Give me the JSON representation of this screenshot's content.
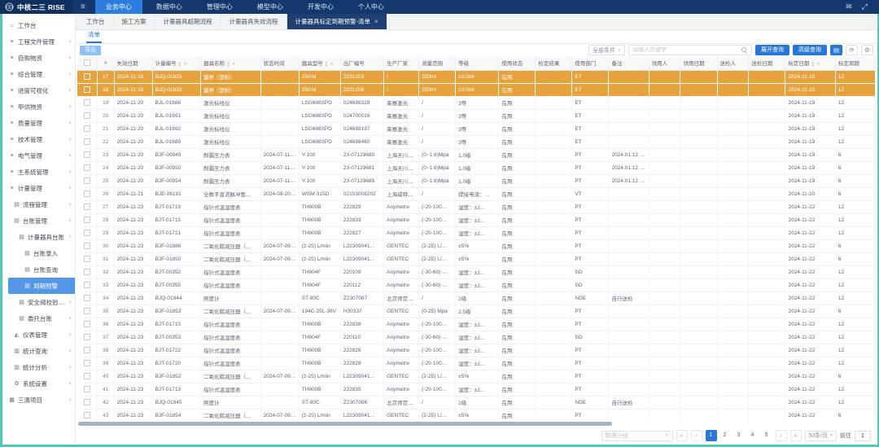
{
  "navbar": {
    "logo_text": "中核二三 RISE",
    "menu": [
      {
        "label": "业务中心",
        "active": true
      },
      {
        "label": "数据中心",
        "active": false
      },
      {
        "label": "管理中心",
        "active": false
      },
      {
        "label": "模型中心",
        "active": false
      },
      {
        "label": "开发中心",
        "active": false
      },
      {
        "label": "个人中心",
        "active": false
      }
    ]
  },
  "sidebar": {
    "items": [
      {
        "label": "工作台",
        "level": 0,
        "icon": "home",
        "chevron": "",
        "active": false
      },
      {
        "label": "工程文件管理",
        "level": 0,
        "icon": "list",
        "chevron": "down",
        "active": false
      },
      {
        "label": "自购物资",
        "level": 0,
        "icon": "list",
        "chevron": "down",
        "active": false
      },
      {
        "label": "综合管理",
        "level": 0,
        "icon": "list",
        "chevron": "down",
        "active": false
      },
      {
        "label": "进度可视化",
        "level": 0,
        "icon": "list",
        "chevron": "down",
        "active": false
      },
      {
        "label": "甲供物资",
        "level": 0,
        "icon": "list",
        "chevron": "down",
        "active": false
      },
      {
        "label": "质量管理",
        "level": 0,
        "icon": "list",
        "chevron": "down",
        "active": false
      },
      {
        "label": "技术管理",
        "level": 0,
        "icon": "list",
        "chevron": "down",
        "active": false
      },
      {
        "label": "电气管理",
        "level": 0,
        "icon": "list",
        "chevron": "down",
        "active": false
      },
      {
        "label": "主系统管理",
        "level": 0,
        "icon": "list",
        "chevron": "down",
        "active": false
      },
      {
        "label": "计量管理",
        "level": 0,
        "icon": "list",
        "chevron": "up",
        "active": false
      },
      {
        "label": "流程管理",
        "level": 1,
        "icon": "card",
        "chevron": "down",
        "active": false
      },
      {
        "label": "台账管理",
        "level": 1,
        "icon": "card",
        "chevron": "up",
        "active": false
      },
      {
        "label": "计量器具台账",
        "level": 2,
        "icon": "card",
        "chevron": "up",
        "active": false
      },
      {
        "label": "台账录入",
        "level": 3,
        "icon": "card",
        "chevron": "",
        "active": false
      },
      {
        "label": "台账查询",
        "level": 3,
        "icon": "card",
        "chevron": "",
        "active": false
      },
      {
        "label": "到期预警",
        "level": 3,
        "icon": "card",
        "chevron": "",
        "active": true
      },
      {
        "label": "安全阀校验台账",
        "level": 2,
        "icon": "card",
        "chevron": "down",
        "active": false
      },
      {
        "label": "委托台账",
        "level": 2,
        "icon": "card",
        "chevron": "down",
        "active": false
      },
      {
        "label": "仪表管理",
        "level": 1,
        "icon": "gauge",
        "chevron": "down",
        "active": false
      },
      {
        "label": "统计查询",
        "level": 1,
        "icon": "bar",
        "chevron": "down",
        "active": false
      },
      {
        "label": "统计分析",
        "level": 1,
        "icon": "bar",
        "chevron": "down",
        "active": false
      },
      {
        "label": "系统设置",
        "level": 1,
        "icon": "gear",
        "chevron": "down",
        "active": false
      },
      {
        "label": "三澳项目",
        "level": 0,
        "icon": "grid",
        "chevron": "down",
        "active": false
      }
    ]
  },
  "tabs": {
    "items": [
      {
        "label": "工作台",
        "active": false,
        "closable": false
      },
      {
        "label": "施工方案",
        "active": false,
        "closable": false
      },
      {
        "label": "计量器具超期流程",
        "active": false,
        "closable": false
      },
      {
        "label": "计量器具失效流程",
        "active": false,
        "closable": false
      },
      {
        "label": "计量器具标定到期预警-清单",
        "active": true,
        "closable": true
      }
    ]
  },
  "subtab": {
    "label": "清单"
  },
  "toolbar": {
    "export_label": "导出",
    "condition_select": "全部条件",
    "search_placeholder": "请输入关键字",
    "expand_query": "展开查询",
    "advanced_query": "高级查询"
  },
  "table": {
    "columns": [
      {
        "label": "",
        "type": "checkbox",
        "w": 24
      },
      {
        "label": "#",
        "type": "num",
        "w": 20
      },
      {
        "label": "失效日期",
        "w": 46
      },
      {
        "label": "计量编号",
        "w": 58,
        "sort": true
      },
      {
        "label": "器具名称",
        "w": 72,
        "sort": true
      },
      {
        "label": "状态时间",
        "w": 46
      },
      {
        "label": "器具型号",
        "w": 50,
        "sort": true
      },
      {
        "label": "出厂编号",
        "w": 52
      },
      {
        "label": "生产厂家",
        "w": 42
      },
      {
        "label": "测量范围",
        "w": 44
      },
      {
        "label": "等级",
        "w": 52
      },
      {
        "label": "使用状态",
        "w": 44
      },
      {
        "label": "检定结果",
        "w": 44
      },
      {
        "label": "使用部门",
        "w": 44
      },
      {
        "label": "备注",
        "w": 48
      },
      {
        "label": "领用人",
        "w": 38
      },
      {
        "label": "领用日期",
        "w": 44
      },
      {
        "label": "送检人",
        "w": 38
      },
      {
        "label": "送检日期",
        "w": 44
      },
      {
        "label": "标定日期",
        "w": 60,
        "sort": true
      },
      {
        "label": "标定周期",
        "w": 48
      }
    ],
    "selected": [
      17,
      18
    ],
    "rows": [
      [
        17,
        "2024-11-16",
        "BJQ-01625",
        "量杯（塑料）",
        "",
        "250ml",
        "2231203",
        "/",
        "250ml",
        "±3.0ml",
        "在用",
        "",
        "ET",
        "",
        "",
        "",
        "",
        "",
        "2024-11-15",
        "12"
      ],
      [
        18,
        "2024-11-16",
        "BJQ-01628",
        "量杯（塑料）",
        "",
        "250ml",
        "2231206",
        "/",
        "250ml",
        "±3.0ml",
        "在用",
        "",
        "ET",
        "",
        "",
        "",
        "",
        "",
        "2024-11-15",
        "12"
      ],
      [
        19,
        "2024-11-20",
        "BJL-01688",
        "激光标线仪",
        "",
        "LSG686SPD",
        "024698328",
        "莱赛激光",
        "/",
        "3等",
        "在用",
        "",
        "ET",
        "",
        "",
        "",
        "",
        "",
        "2024-11-19",
        "12"
      ],
      [
        20,
        "2024-11-20",
        "BJL-01691",
        "激光标线仪",
        "",
        "LSG686SPD",
        "024700016",
        "莱赛激光",
        "/",
        "3等",
        "在用",
        "",
        "ET",
        "",
        "",
        "",
        "",
        "",
        "2024-11-19",
        "12"
      ],
      [
        21,
        "2024-11-20",
        "BJL-01692",
        "激光标线仪",
        "",
        "LSG686SPD",
        "024698197",
        "莱赛激光",
        "/",
        "3等",
        "在用",
        "",
        "ET",
        "",
        "",
        "",
        "",
        "",
        "2024-11-19",
        "12"
      ],
      [
        22,
        "2024-11-20",
        "BJL-01689",
        "激光标线仪",
        "",
        "LSG686SPD",
        "024698460",
        "莱赛激光",
        "/",
        "3等",
        "在用",
        "",
        "ET",
        "",
        "",
        "",
        "",
        "",
        "2024-11-19",
        "12"
      ],
      [
        23,
        "2024-11-20",
        "BJF-00949",
        "耐震压力表",
        "2024-07-11…",
        "Y-100",
        "23-07129680",
        "上海天川仪…",
        "(0~1.6)Mpa",
        "1.0级",
        "在用",
        "",
        "PT",
        "2024.01.12 …",
        "",
        "",
        "",
        "",
        "2024-11-19",
        "6"
      ],
      [
        24,
        "2024-11-20",
        "BJF-00950",
        "耐震压力表",
        "2024-07-11…",
        "Y-100",
        "23-07129681",
        "上海天川仪…",
        "(0~1.6)Mpa",
        "1.0级",
        "在用",
        "",
        "PT",
        "2024.01.12 …",
        "",
        "",
        "",
        "",
        "2024-11-19",
        "6"
      ],
      [
        25,
        "2024-11-20",
        "BJF-00954",
        "耐震压力表",
        "2024-07-11…",
        "Y-100",
        "23-07129685",
        "上海天川仪…",
        "(0~1.6)Mpa",
        "1.0级",
        "在用",
        "",
        "PT",
        "2024.01.12 …",
        "",
        "",
        "",
        "",
        "2024-11-19",
        "6"
      ],
      [
        26,
        "2024-11-21",
        "BJE-06191",
        "全数字直流脉冲氩…",
        "2024-09-20…",
        "WSM-315D",
        "02103008202",
        "上海威特力…",
        "/",
        "焊接电流：…",
        "在用",
        "",
        "VT",
        "",
        "",
        "",
        "",
        "",
        "2024-11-20",
        "6"
      ],
      [
        27,
        "2024-11-23",
        "BJT-01719",
        "指针式温湿度表",
        "",
        "TH600B",
        "222829",
        "Anymetre",
        "(-20-100…",
        "湿度：±2…",
        "在用",
        "",
        "PT",
        "",
        "",
        "",
        "",
        "",
        "2024-11-22",
        "12"
      ],
      [
        28,
        "2024-11-23",
        "BJT-01715",
        "指针式温湿度表",
        "",
        "TH600B",
        "222833",
        "Anymetre",
        "(-20-100…",
        "湿度：±2…",
        "在用",
        "",
        "PT",
        "",
        "",
        "",
        "",
        "",
        "2024-11-22",
        "12"
      ],
      [
        29,
        "2024-11-23",
        "BJT-01721",
        "指针式温湿度表",
        "",
        "TH600B",
        "222827",
        "Anymetre",
        "(-20-100…",
        "湿度：±2…",
        "在用",
        "",
        "PT",
        "",
        "",
        "",
        "",
        "",
        "2024-11-22",
        "12"
      ],
      [
        30,
        "2024-11-23",
        "BJF-01886",
        "二氧化碳减压器（…",
        "2024-07-09…",
        "(2-25) L/min",
        "L22309041…",
        "GENTEC",
        "(2-25) L/…",
        "±5%",
        "在用",
        "",
        "PT",
        "",
        "",
        "",
        "",
        "",
        "2024-11-22",
        "6"
      ],
      [
        31,
        "2024-11-23",
        "BJF-01850",
        "二氧化碳减压器（…",
        "2024-07-09…",
        "(2-25) L/min",
        "L22309041…",
        "GENTEC",
        "(2-25) L/…",
        "±5%",
        "在用",
        "",
        "PT",
        "",
        "",
        "",
        "",
        "",
        "2024-11-22",
        "6"
      ],
      [
        32,
        "2024-11-23",
        "BJT-00352",
        "指针式温湿度表",
        "",
        "TH604F",
        "220109",
        "Anymetre",
        "(-30-60) …",
        "湿度：±2…",
        "在用",
        "",
        "SD",
        "",
        "",
        "",
        "",
        "",
        "2024-11-22",
        "12"
      ],
      [
        33,
        "2024-11-23",
        "BJT-00355",
        "指针式温湿度表",
        "",
        "TH604F",
        "220112",
        "Anymetre",
        "(-30-60) …",
        "湿度：±2…",
        "在用",
        "",
        "SD",
        "",
        "",
        "",
        "",
        "",
        "2024-11-22",
        "12"
      ],
      [
        34,
        "2024-11-23",
        "BJQ-01944",
        "照度计",
        "",
        "ST-80C",
        "Z2307087",
        "北京师范大…",
        "/",
        "2级",
        "在用",
        "",
        "NDE",
        "自行送检",
        "",
        "",
        "",
        "",
        "2024-11-22",
        "12"
      ],
      [
        35,
        "2024-11-23",
        "BJF-01853",
        "二氧化碳减压器（…",
        "2024-07-09…",
        "194C-25L-36V",
        "H30337",
        "GENTEC",
        "(0-25) Mpa",
        "2.5级",
        "在用",
        "",
        "PT",
        "",
        "",
        "",
        "",
        "",
        "2024-11-22",
        "6"
      ],
      [
        36,
        "2024-11-23",
        "BJT-01710",
        "指针式温湿度表",
        "",
        "TH600B",
        "222838",
        "Anymetre",
        "(-20-100…",
        "湿度：±2…",
        "在用",
        "",
        "PT",
        "",
        "",
        "",
        "",
        "",
        "2024-11-22",
        "12"
      ],
      [
        37,
        "2024-11-23",
        "BJT-00353",
        "指针式温湿度表",
        "",
        "TH604F",
        "220110",
        "Anymetre",
        "(-30-60) …",
        "湿度：±2…",
        "在用",
        "",
        "SD",
        "",
        "",
        "",
        "",
        "",
        "2024-11-22",
        "12"
      ],
      [
        38,
        "2024-11-23",
        "BJT-01722",
        "指针式温湿度表",
        "",
        "TH600B",
        "222826",
        "Anymetre",
        "(-20-100…",
        "湿度：±2…",
        "在用",
        "",
        "PT",
        "",
        "",
        "",
        "",
        "",
        "2024-11-22",
        "12"
      ],
      [
        39,
        "2024-11-23",
        "BJT-01720",
        "指针式温湿度表",
        "",
        "TH600B",
        "222828",
        "Anymetre",
        "(-20-100…",
        "湿度：±2…",
        "在用",
        "",
        "PT",
        "",
        "",
        "",
        "",
        "",
        "2024-11-22",
        "12"
      ],
      [
        40,
        "2024-11-23",
        "BJF-01852",
        "二氧化碳减压器（…",
        "2024-07-09…",
        "(2-25) L/min",
        "L22309041…",
        "GENTEC",
        "(2-25) L/…",
        "±5%",
        "在用",
        "",
        "PT",
        "",
        "",
        "",
        "",
        "",
        "2024-11-22",
        "6"
      ],
      [
        41,
        "2024-11-23",
        "BJT-01713",
        "指针式温湿度表",
        "",
        "TH600B",
        "222835",
        "Anymetre",
        "(-20-100…",
        "湿度：±2…",
        "在用",
        "",
        "PT",
        "",
        "",
        "",
        "",
        "",
        "2024-11-22",
        "12"
      ],
      [
        42,
        "2024-11-23",
        "BJQ-01945",
        "照度计",
        "",
        "ST-80C",
        "Z2307086",
        "北京师范大…",
        "/",
        "2级",
        "在用",
        "",
        "NDE",
        "自行送检",
        "",
        "",
        "",
        "",
        "2024-11-22",
        "12"
      ],
      [
        43,
        "2024-11-23",
        "BJF-01854",
        "二氧化碳减压器（…",
        "2024-07-09…",
        "(2-25) L/min",
        "L22309041…",
        "GENTEC",
        "(2-25) L/…",
        "±5%",
        "在用",
        "",
        "PT",
        "",
        "",
        "",
        "",
        "",
        "2024-11-22",
        "6"
      ]
    ]
  },
  "pagination": {
    "group_placeholder": "数据分组",
    "pages": [
      "1",
      "2",
      "3",
      "4",
      "5"
    ],
    "current": "1",
    "size_label": "50条/页",
    "goto_label": "前往",
    "goto_value": "1"
  },
  "colors": {
    "navbar": "#14386d",
    "nav_active": "#2b7de0",
    "accent_blue": "#2878d9",
    "sidebar_active": "#5496e8",
    "selected_row": "#e8a23c",
    "frame_teal": "#4fc8ba",
    "active_tab": "#1d3f72"
  }
}
